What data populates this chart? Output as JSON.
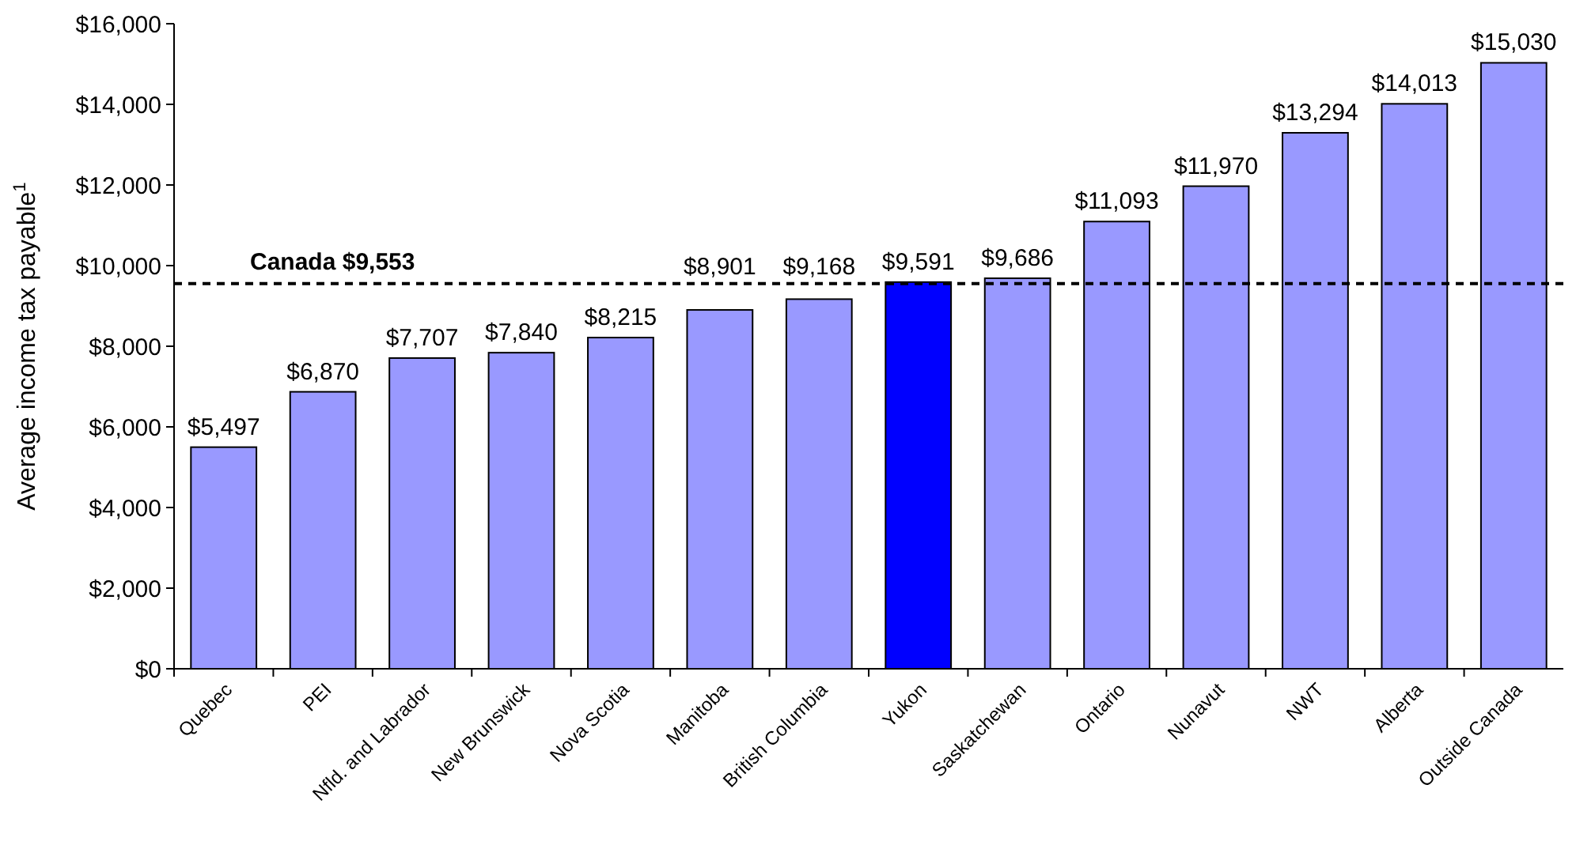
{
  "chart_data": {
    "type": "bar",
    "ylabel": "Average income tax payable$^{1}$",
    "categories": [
      "Quebec",
      "PEI",
      "Nfld. and Labrador",
      "New Brunswick",
      "Nova Scotia",
      "Manitoba",
      "British Columbia",
      "Yukon",
      "Saskatchewan",
      "Ontario",
      "Nunavut",
      "NWT",
      "Alberta",
      "Outside Canada"
    ],
    "values": [
      5497,
      6870,
      7707,
      7840,
      8215,
      8901,
      9168,
      9591,
      9686,
      11093,
      11970,
      13294,
      14013,
      15030
    ],
    "colors": [
      "#9999ff",
      "#9999ff",
      "#9999ff",
      "#9999ff",
      "#9999ff",
      "#9999ff",
      "#9999ff",
      "#0000ff",
      "#9999ff",
      "#9999ff",
      "#9999ff",
      "#9999ff",
      "#9999ff",
      "#9999ff"
    ],
    "value_labels": [
      "$5,497",
      "$6,870",
      "$7,707",
      "$7,840",
      "$8,215",
      "$8,901",
      "$9,168",
      "$9,591",
      "$9,686",
      "$11,093",
      "$11,970",
      "$13,294",
      "$14,013",
      "$15,030"
    ],
    "ylim": [
      0,
      16000
    ],
    "yticks": [
      {
        "value": 0,
        "label": "$0"
      },
      {
        "value": 2000,
        "label": "$2,000"
      },
      {
        "value": 4000,
        "label": "$4,000"
      },
      {
        "value": 6000,
        "label": "$6,000"
      },
      {
        "value": 8000,
        "label": "$8,000"
      },
      {
        "value": 10000,
        "label": "$10,000"
      },
      {
        "value": 12000,
        "label": "$12,000"
      },
      {
        "value": 14000,
        "label": "$14,000"
      },
      {
        "value": 16000,
        "label": "$16,000"
      }
    ],
    "ref_lines": [
      {
        "axis": "y",
        "value": 9553,
        "label": "Canada $9,553",
        "color": "#000000",
        "line_style": "dashed"
      }
    ],
    "grid": false
  }
}
